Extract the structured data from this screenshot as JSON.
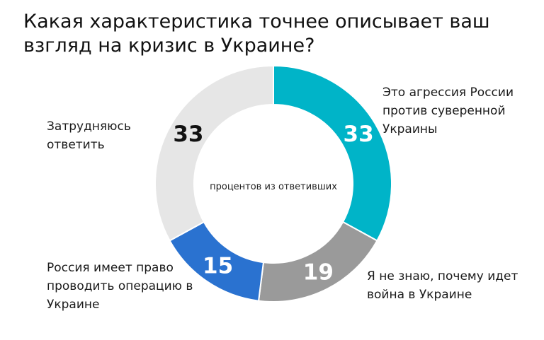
{
  "chart_data": {
    "type": "pie",
    "title": "Какая характеристика точнее описывает ваш взгляд на кризис в Украине?",
    "center_label": "процентов из ответивших",
    "slices": [
      {
        "label": "Это агрессия России против суверенной Украины",
        "value": 33,
        "color": "#00b4c8",
        "value_color": "#ffffff"
      },
      {
        "label": "Я не знаю, почему идет война в Украине",
        "value": 19,
        "color": "#9a9a9a",
        "value_color": "#ffffff"
      },
      {
        "label": "Россия имеет право проводить операцию в Украине",
        "value": 15,
        "color": "#2a72d0",
        "value_color": "#ffffff"
      },
      {
        "label": "Затрудняюсь ответить",
        "value": 33,
        "color": "#e6e6e6",
        "value_color": "#111111"
      }
    ]
  }
}
